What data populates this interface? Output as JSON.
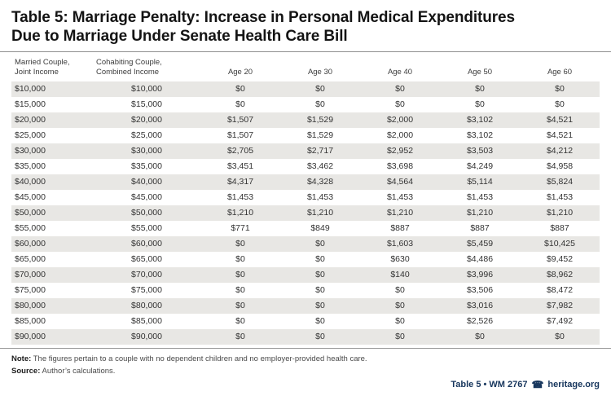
{
  "title": "Table 5: Marriage Penalty: Increase in Personal Medical Expenditures\nDue to Marriage Under Senate Health Care Bill",
  "note": {
    "label": "Note:",
    "text": "The figures pertain to a couple with no dependent children and no employer-provided health care."
  },
  "source": {
    "label": "Source:",
    "text": "Author’s calculations."
  },
  "footer": {
    "doc_ref": "Table 5 • WM 2767",
    "icon": "heritage-bell-icon",
    "icon_glyph": "☎",
    "site": "heritage.org"
  },
  "colors": {
    "accent_navy": "#17365d",
    "row_shade": "#e8e7e4",
    "rule_gray": "#909090"
  },
  "chart_data": {
    "type": "table",
    "title": "Table 5: Marriage Penalty: Increase in Personal Medical Expenditures Due to Marriage Under Senate Health Care Bill",
    "columns": [
      "Married Couple,\nJoint Income",
      "Cohabiting Couple,\nCombined Income",
      "Age 20",
      "Age 30",
      "Age 40",
      "Age 50",
      "Age 60"
    ],
    "rows": [
      [
        "$10,000",
        "$10,000",
        "$0",
        "$0",
        "$0",
        "$0",
        "$0"
      ],
      [
        "$15,000",
        "$15,000",
        "$0",
        "$0",
        "$0",
        "$0",
        "$0"
      ],
      [
        "$20,000",
        "$20,000",
        "$1,507",
        "$1,529",
        "$2,000",
        "$3,102",
        "$4,521"
      ],
      [
        "$25,000",
        "$25,000",
        "$1,507",
        "$1,529",
        "$2,000",
        "$3,102",
        "$4,521"
      ],
      [
        "$30,000",
        "$30,000",
        "$2,705",
        "$2,717",
        "$2,952",
        "$3,503",
        "$4,212"
      ],
      [
        "$35,000",
        "$35,000",
        "$3,451",
        "$3,462",
        "$3,698",
        "$4,249",
        "$4,958"
      ],
      [
        "$40,000",
        "$40,000",
        "$4,317",
        "$4,328",
        "$4,564",
        "$5,114",
        "$5,824"
      ],
      [
        "$45,000",
        "$45,000",
        "$1,453",
        "$1,453",
        "$1,453",
        "$1,453",
        "$1,453"
      ],
      [
        "$50,000",
        "$50,000",
        "$1,210",
        "$1,210",
        "$1,210",
        "$1,210",
        "$1,210"
      ],
      [
        "$55,000",
        "$55,000",
        "$771",
        "$849",
        "$887",
        "$887",
        "$887"
      ],
      [
        "$60,000",
        "$60,000",
        "$0",
        "$0",
        "$1,603",
        "$5,459",
        "$10,425"
      ],
      [
        "$65,000",
        "$65,000",
        "$0",
        "$0",
        "$630",
        "$4,486",
        "$9,452"
      ],
      [
        "$70,000",
        "$70,000",
        "$0",
        "$0",
        "$140",
        "$3,996",
        "$8,962"
      ],
      [
        "$75,000",
        "$75,000",
        "$0",
        "$0",
        "$0",
        "$3,506",
        "$8,472"
      ],
      [
        "$80,000",
        "$80,000",
        "$0",
        "$0",
        "$0",
        "$3,016",
        "$7,982"
      ],
      [
        "$85,000",
        "$85,000",
        "$0",
        "$0",
        "$0",
        "$2,526",
        "$7,492"
      ],
      [
        "$90,000",
        "$90,000",
        "$0",
        "$0",
        "$0",
        "$0",
        "$0"
      ]
    ]
  }
}
